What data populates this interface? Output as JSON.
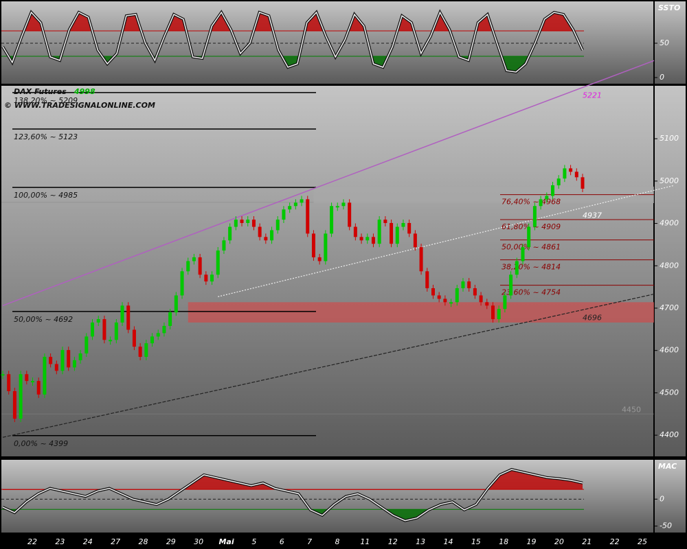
{
  "chart_data": [
    {
      "type": "line",
      "title": "SSTO",
      "ylim": [
        -9,
        111
      ],
      "yticks": [
        50,
        0
      ],
      "color": "#f2f2f2",
      "levels": [
        {
          "value": 68,
          "color": "#c00000"
        },
        {
          "value": 50,
          "color": "#222222"
        },
        {
          "value": 31,
          "color": "#008000"
        }
      ],
      "values": [
        45,
        22,
        60,
        95,
        80,
        30,
        25,
        70,
        95,
        88,
        40,
        20,
        35,
        90,
        92,
        50,
        25,
        60,
        92,
        85,
        30,
        28,
        75,
        95,
        70,
        35,
        50,
        95,
        90,
        40,
        15,
        20,
        80,
        95,
        60,
        30,
        55,
        92,
        75,
        20,
        15,
        45,
        90,
        80,
        35,
        60,
        95,
        70,
        30,
        25,
        80,
        92,
        50,
        10,
        8,
        20,
        50,
        85,
        95,
        92,
        70,
        40
      ]
    },
    {
      "type": "candlestick",
      "title": "DAX Futures",
      "last_price": 4998,
      "subtitle": "© WWW.TRADESIGNALONLINE.COM",
      "ylim": [
        4350,
        5225
      ],
      "yticks": [
        4400,
        4500,
        4600,
        4700,
        4800,
        4900,
        5000,
        5100
      ],
      "up_color": "#00c800",
      "down_color": "#d00000",
      "values": [
        4544,
        4504,
        4439,
        4544,
        4528,
        4528,
        4496,
        4585,
        4568,
        4552,
        4601,
        4560,
        4577,
        4593,
        4633,
        4666,
        4674,
        4625,
        4625,
        4666,
        4706,
        4649,
        4609,
        4585,
        4617,
        4633,
        4641,
        4658,
        4690,
        4730,
        4787,
        4811,
        4820,
        4779,
        4763,
        4779,
        4836,
        4860,
        4892,
        4909,
        4901,
        4909,
        4892,
        4868,
        4860,
        4884,
        4909,
        4933,
        4941,
        4949,
        4957,
        4876,
        4820,
        4811,
        4876,
        4941,
        4941,
        4949,
        4892,
        4868,
        4860,
        4868,
        4852,
        4909,
        4901,
        4852,
        4892,
        4901,
        4876,
        4844,
        4787,
        4747,
        4730,
        4722,
        4714,
        4714,
        4747,
        4763,
        4747,
        4730,
        4714,
        4706,
        4674,
        4698,
        4730,
        4779,
        4811,
        4844,
        4892,
        4941,
        4957,
        4965,
        4990,
        5006,
        5030,
        5022,
        5009,
        4982
      ],
      "fib_left": [
        {
          "label": "138,20% ~ 5209",
          "value": 5209
        },
        {
          "label": "123,60% ~ 5123",
          "value": 5123
        },
        {
          "label": "100,00% ~ 4985",
          "value": 4985
        },
        {
          "label": "50,00% ~ 4692",
          "value": 4692
        },
        {
          "label": "0,00% ~ 4399",
          "value": 4399
        }
      ],
      "fib_right": [
        {
          "label": "76,40% ~ 4968",
          "value": 4968
        },
        {
          "label": "61,80% ~ 4909",
          "value": 4909
        },
        {
          "label": "50,00% ~ 4861",
          "value": 4861
        },
        {
          "label": "38,20% ~ 4814",
          "value": 4814
        },
        {
          "label": "23,60% ~ 4754",
          "value": 4754
        }
      ],
      "fib_color": "#8b0000",
      "trendlines": [
        {
          "start": [
            0,
            4706
          ],
          "end": [
            97,
            5221
          ],
          "color": "#b060c0",
          "dash": "none",
          "label_color": "#e020e0"
        },
        {
          "start": [
            36,
            4727
          ],
          "end": [
            97,
            4937
          ],
          "color": "#eeeeee",
          "dash": "2 2",
          "label_color": "#ffffff"
        },
        {
          "start": [
            0,
            4395
          ],
          "end": [
            97,
            4696
          ],
          "color": "#222222",
          "dash": "5 2",
          "label_color": "#222222"
        }
      ],
      "zones": [
        {
          "from": 31,
          "range": [
            4666,
            4714
          ],
          "color": "#c85050"
        },
        {
          "from": 52,
          "range": [
            4948,
            4987
          ],
          "color": "#a8a8a8"
        }
      ],
      "faint_levels": [
        4950,
        4450
      ]
    },
    {
      "type": "line",
      "title": "MAC",
      "ylim": [
        -62,
        73
      ],
      "yticks": [
        0,
        -50
      ],
      "color": "#f2f2f2",
      "levels": [
        {
          "value": 18,
          "color": "#c00000"
        },
        {
          "value": 0,
          "color": "#222222"
        },
        {
          "value": -19,
          "color": "#008000"
        }
      ],
      "values": [
        -15,
        -25,
        -5,
        10,
        20,
        15,
        10,
        5,
        15,
        20,
        10,
        0,
        -5,
        -10,
        0,
        15,
        30,
        45,
        40,
        35,
        30,
        25,
        30,
        20,
        15,
        10,
        -20,
        -30,
        -10,
        5,
        10,
        0,
        -15,
        -30,
        -40,
        -35,
        -20,
        -10,
        -5,
        -20,
        -10,
        20,
        45,
        55,
        50,
        45,
        40,
        38,
        35,
        30
      ],
      "date_labels": [
        "22",
        "23",
        "24",
        "27",
        "28",
        "29",
        "30",
        "Mai",
        "5",
        "6",
        "7",
        "8",
        "11",
        "12",
        "13",
        "14",
        "15",
        "18",
        "19",
        "20",
        "21",
        "22",
        "25"
      ]
    }
  ]
}
